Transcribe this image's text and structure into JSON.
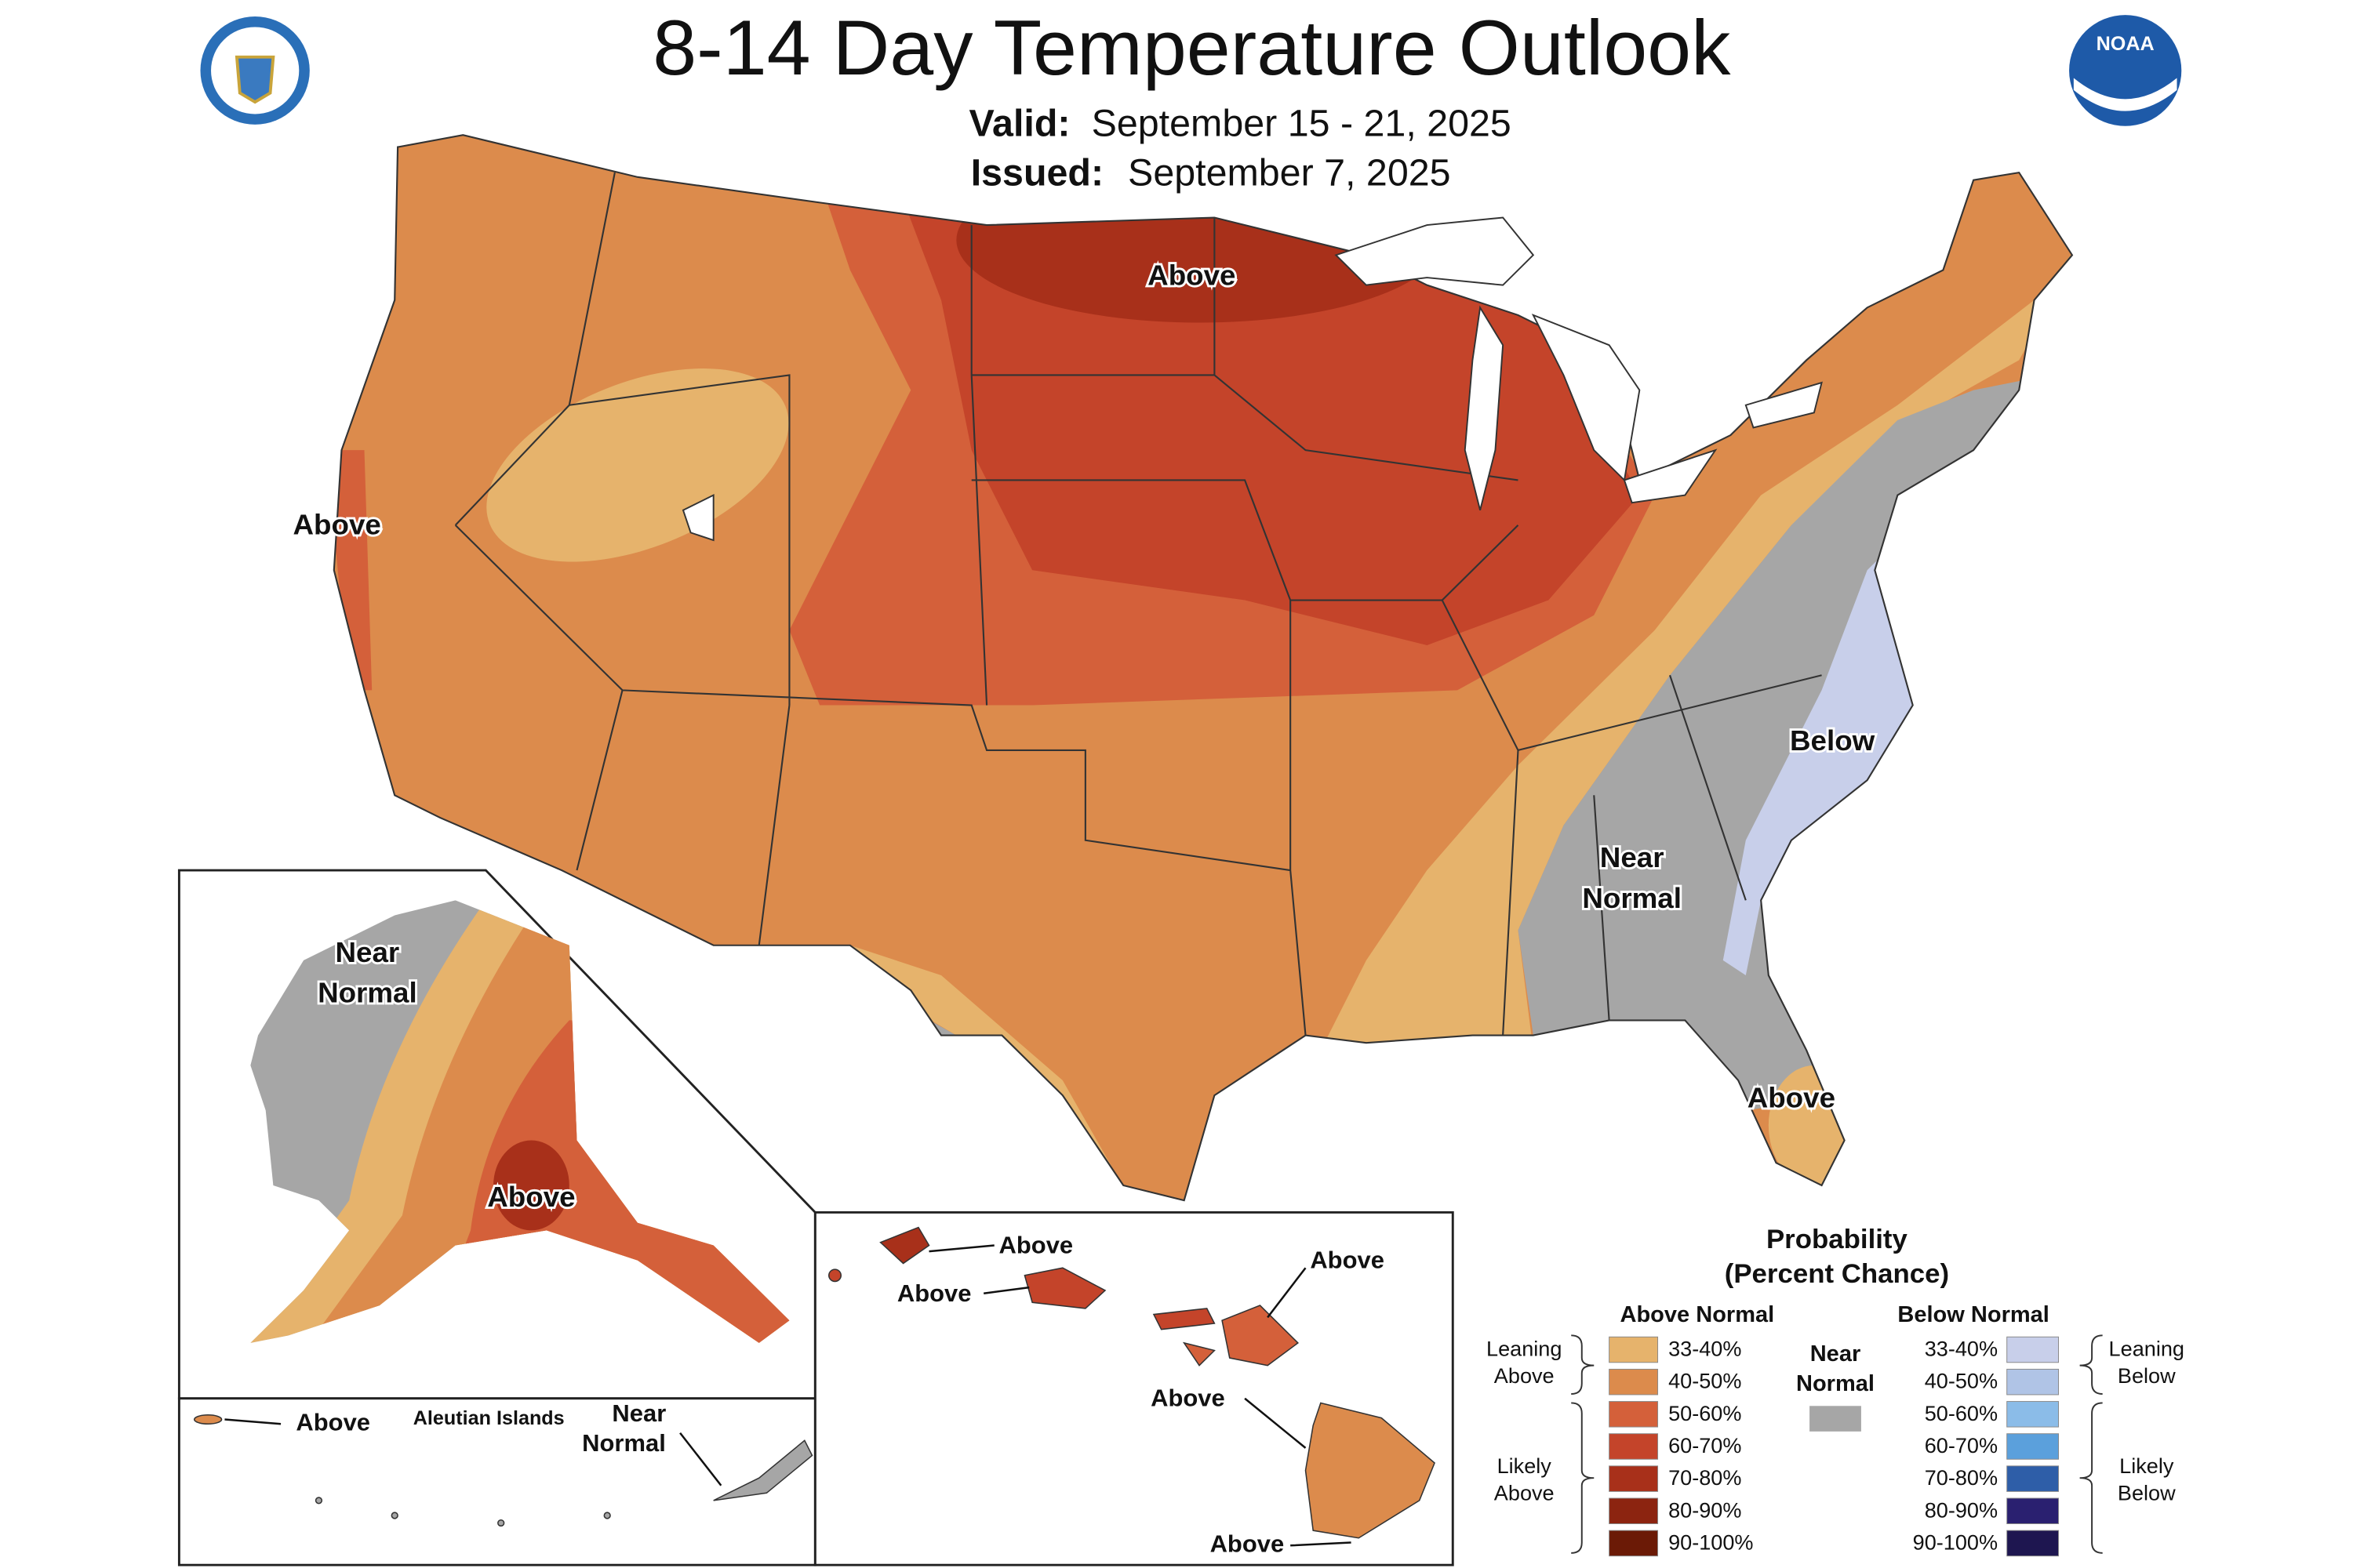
{
  "header": {
    "title": "8-14 Day Temperature Outlook",
    "valid_label": "Valid:",
    "valid_date": "September 15 - 21, 2025",
    "issued_label": "Issued:",
    "issued_date": "September 7, 2025"
  },
  "logos": {
    "noaa": "NOAA"
  },
  "conus": {
    "labels": {
      "north": "Above",
      "west": "Above",
      "east_coast": "Below",
      "southeast": [
        "Near",
        "Normal"
      ],
      "florida": "Above"
    }
  },
  "alaska": {
    "near_normal": [
      "Near",
      "Normal"
    ],
    "above": "Above"
  },
  "aleutians": {
    "title": "Aleutian Islands",
    "above": "Above",
    "near_normal": [
      "Near",
      "Normal"
    ]
  },
  "hawaii": {
    "labels": [
      "Above",
      "Above",
      "Above",
      "Above",
      "Above"
    ]
  },
  "legend": {
    "title": [
      "Probability",
      "(Percent Chance)"
    ],
    "above_header": "Above Normal",
    "below_header": "Below Normal",
    "near": [
      "Near",
      "Normal"
    ],
    "near_color": "#a6a6a6",
    "leaning_above": [
      "Leaning",
      "Above"
    ],
    "likely_above": [
      "Likely",
      "Above"
    ],
    "leaning_below": [
      "Leaning",
      "Below"
    ],
    "likely_below": [
      "Likely",
      "Below"
    ],
    "above_bins": [
      {
        "label": "33-40%",
        "color": "#e6b36c"
      },
      {
        "label": "40-50%",
        "color": "#dc8b4c"
      },
      {
        "label": "50-60%",
        "color": "#d4603a"
      },
      {
        "label": "60-70%",
        "color": "#c4442a"
      },
      {
        "label": "70-80%",
        "color": "#a8301a"
      },
      {
        "label": "80-90%",
        "color": "#8c2410"
      },
      {
        "label": "90-100%",
        "color": "#6b1a06"
      }
    ],
    "below_bins": [
      {
        "label": "33-40%",
        "color": "#c8cfea"
      },
      {
        "label": "40-50%",
        "color": "#b0c4e6"
      },
      {
        "label": "50-60%",
        "color": "#8bbce8"
      },
      {
        "label": "60-70%",
        "color": "#5ba0dc"
      },
      {
        "label": "70-80%",
        "color": "#2e5ea8"
      },
      {
        "label": "80-90%",
        "color": "#2a2070"
      },
      {
        "label": "90-100%",
        "color": "#1e1650"
      }
    ]
  }
}
